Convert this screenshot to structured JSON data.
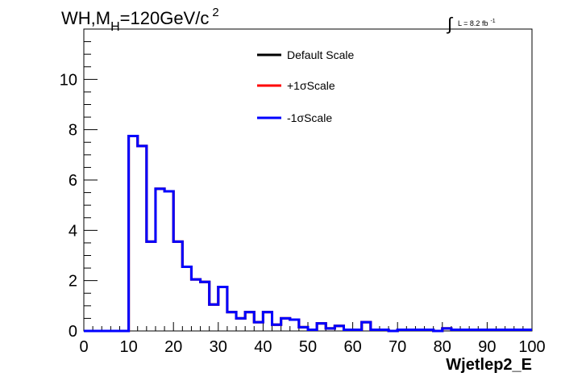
{
  "title_prefix": "WH,M",
  "title_sub": "H",
  "title_suffix": "=120GeV/c",
  "title_sup": "2",
  "lumi_symbol": "∫",
  "lumi_label": "L = 8.2 fb",
  "lumi_sup": "-1",
  "chart_data": {
    "type": "line",
    "xlabel": "Wjetlep2_E",
    "ylabel": "",
    "xlim": [
      0,
      100
    ],
    "ylim": [
      0,
      12
    ],
    "x_ticks": [
      0,
      10,
      20,
      30,
      40,
      50,
      60,
      70,
      80,
      90,
      100
    ],
    "y_ticks": [
      0,
      2,
      4,
      6,
      8,
      10
    ],
    "grid": false,
    "legend_position": "top-center",
    "bin_width": 2,
    "series": [
      {
        "name": "Default Scale",
        "color": "#000000",
        "values": [
          0,
          0,
          0,
          0,
          0,
          7.75,
          7.35,
          3.55,
          5.65,
          5.55,
          3.55,
          2.55,
          2.05,
          1.95,
          1.05,
          1.75,
          0.75,
          0.5,
          0.75,
          0.35,
          0.75,
          0.25,
          0.5,
          0.45,
          0.15,
          0.05,
          0.3,
          0.1,
          0.2,
          0.05,
          0.05,
          0.35,
          0.05,
          0.05,
          0.0,
          0.05,
          0.05,
          0.05,
          0.05,
          0.0,
          0.1,
          0.05,
          0.05,
          0.05,
          0.05,
          0.05,
          0.05,
          0.05,
          0.05,
          0.05
        ]
      },
      {
        "name": "+1σScale",
        "color": "#ff0000",
        "values": [
          0,
          0,
          0,
          0,
          0,
          7.75,
          7.35,
          3.55,
          5.65,
          5.55,
          3.55,
          2.55,
          2.05,
          1.95,
          1.05,
          1.75,
          0.75,
          0.5,
          0.75,
          0.35,
          0.75,
          0.25,
          0.5,
          0.45,
          0.15,
          0.05,
          0.3,
          0.1,
          0.2,
          0.05,
          0.05,
          0.35,
          0.05,
          0.05,
          0.0,
          0.05,
          0.05,
          0.05,
          0.05,
          0.0,
          0.1,
          0.05,
          0.05,
          0.05,
          0.05,
          0.05,
          0.05,
          0.05,
          0.05,
          0.05
        ]
      },
      {
        "name": "-1σScale",
        "color": "#0000ff",
        "values": [
          0,
          0,
          0,
          0,
          0,
          7.75,
          7.35,
          3.55,
          5.65,
          5.55,
          3.55,
          2.55,
          2.05,
          1.95,
          1.05,
          1.75,
          0.75,
          0.5,
          0.75,
          0.35,
          0.75,
          0.25,
          0.5,
          0.45,
          0.15,
          0.05,
          0.3,
          0.1,
          0.2,
          0.05,
          0.05,
          0.35,
          0.05,
          0.05,
          0.0,
          0.05,
          0.05,
          0.05,
          0.05,
          0.0,
          0.1,
          0.05,
          0.05,
          0.05,
          0.05,
          0.05,
          0.05,
          0.05,
          0.05,
          0.05
        ]
      }
    ]
  }
}
